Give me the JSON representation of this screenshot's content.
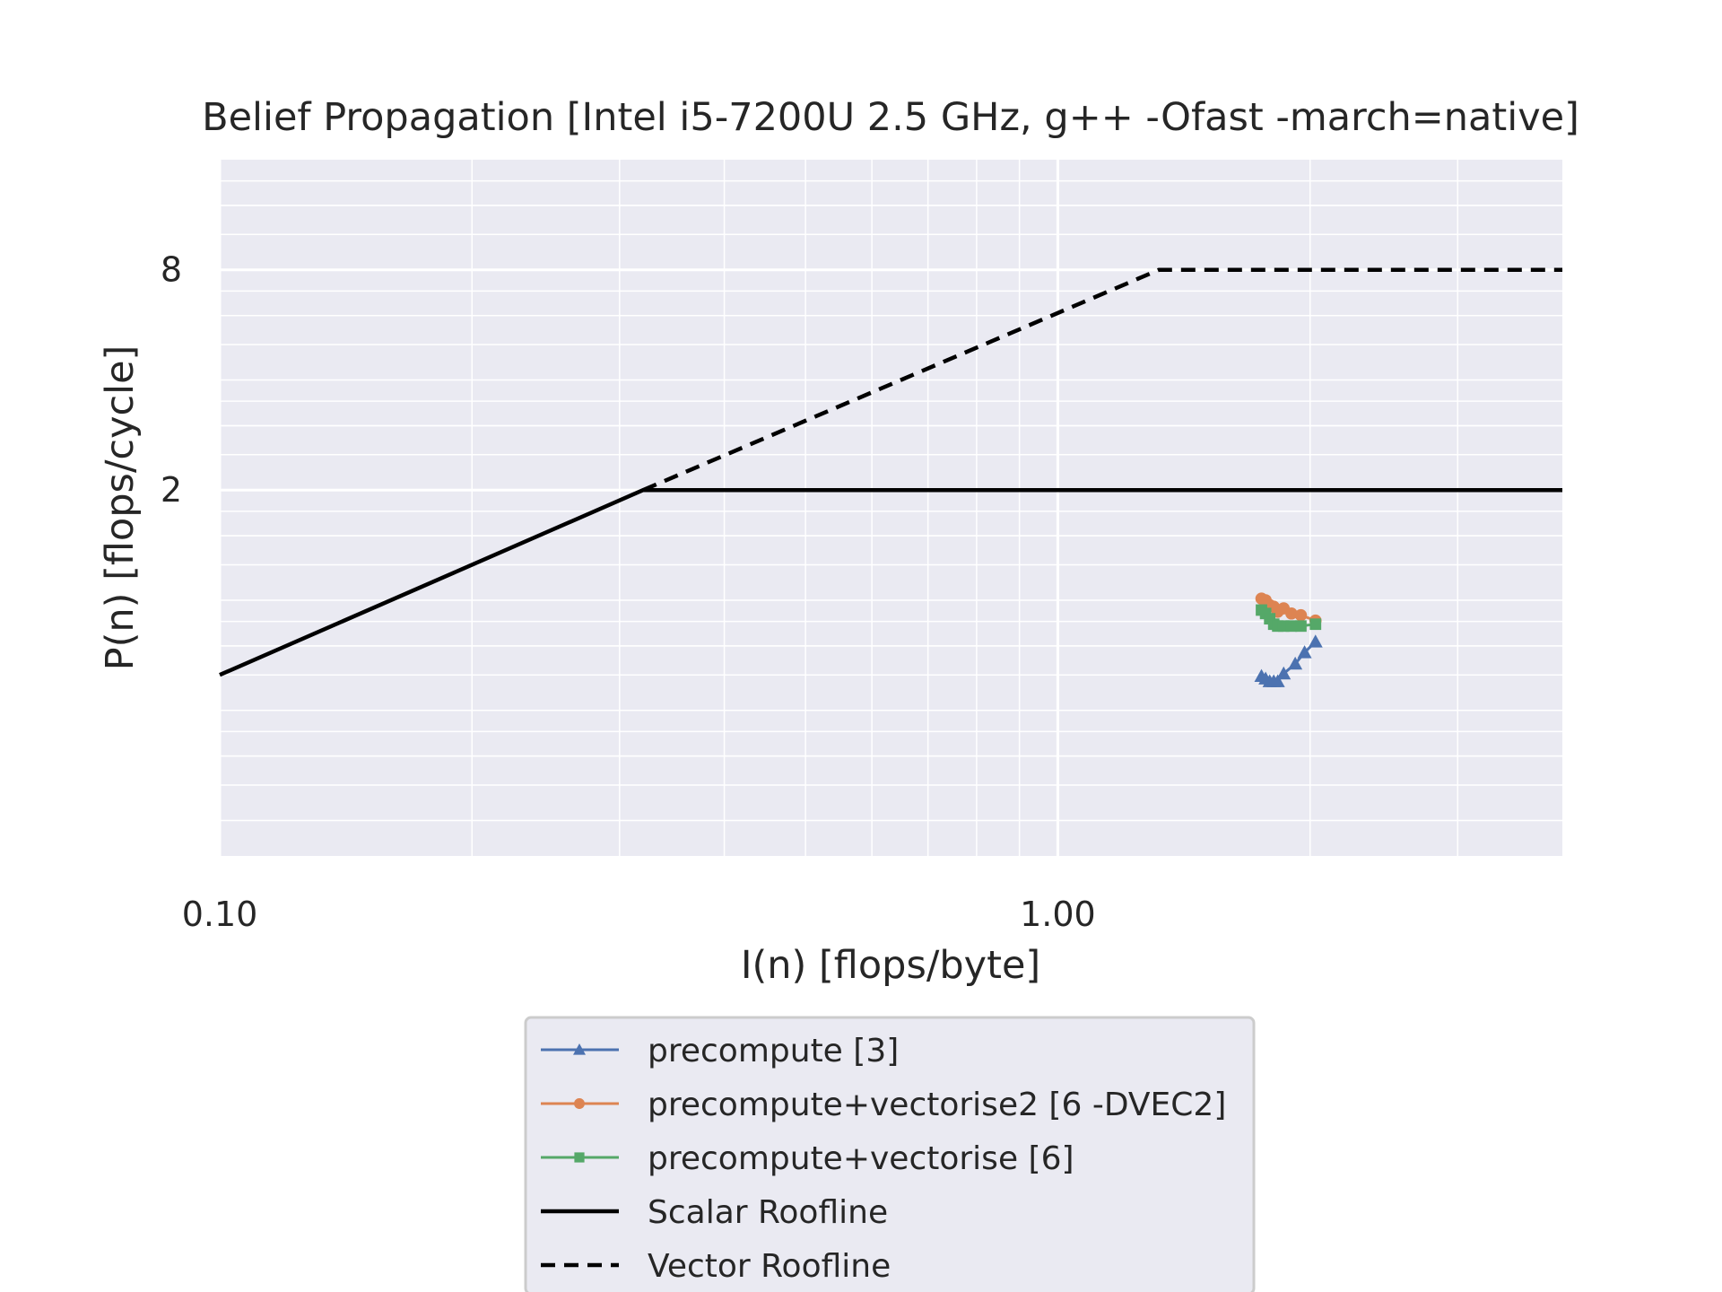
{
  "chart_data": {
    "type": "line",
    "title": "Belief Propagation [Intel i5-7200U 2.5 GHz, g++ -Ofast -march=native]",
    "xlabel": "I(n) [flops/byte]",
    "ylabel": "P(n) [flops/cycle]",
    "xscale": "log",
    "yscale": "log2",
    "xlim": [
      0.1,
      4.0
    ],
    "ylim": [
      0.2,
      16
    ],
    "xticks": [
      0.1,
      1.0
    ],
    "xtick_labels": [
      "0.10",
      "1.00"
    ],
    "yticks": [
      2,
      8
    ],
    "ytick_labels": [
      "2",
      "8"
    ],
    "grid": true,
    "legend_position": "below",
    "series": [
      {
        "name": "precompute [3]",
        "color": "#4c72b0",
        "marker": "triangle",
        "x": [
          1.75,
          1.77,
          1.79,
          1.81,
          1.83,
          1.86,
          1.92,
          1.97,
          2.03
        ],
        "y": [
          0.62,
          0.61,
          0.6,
          0.6,
          0.6,
          0.63,
          0.67,
          0.72,
          0.77
        ]
      },
      {
        "name": "precompute+vectorise2 [6 -DVEC2]",
        "color": "#dd8452",
        "marker": "circle",
        "x": [
          1.75,
          1.77,
          1.79,
          1.81,
          1.83,
          1.86,
          1.9,
          1.95,
          2.03
        ],
        "y": [
          1.01,
          1.0,
          0.97,
          0.96,
          0.93,
          0.95,
          0.92,
          0.91,
          0.88
        ]
      },
      {
        "name": "precompute+vectorise [6]",
        "color": "#55a868",
        "marker": "square",
        "x": [
          1.75,
          1.77,
          1.79,
          1.81,
          1.83,
          1.86,
          1.9,
          1.95,
          2.03
        ],
        "y": [
          0.94,
          0.92,
          0.89,
          0.86,
          0.85,
          0.85,
          0.85,
          0.85,
          0.86
        ]
      },
      {
        "name": "Scalar Roofline",
        "color": "#000000",
        "style": "solid",
        "x": [
          0.1,
          0.32,
          4.0
        ],
        "y": [
          0.625,
          2,
          2
        ]
      },
      {
        "name": "Vector Roofline",
        "color": "#000000",
        "style": "dashed",
        "x": [
          0.32,
          1.32,
          4.0
        ],
        "y": [
          2,
          8,
          8
        ]
      }
    ]
  }
}
